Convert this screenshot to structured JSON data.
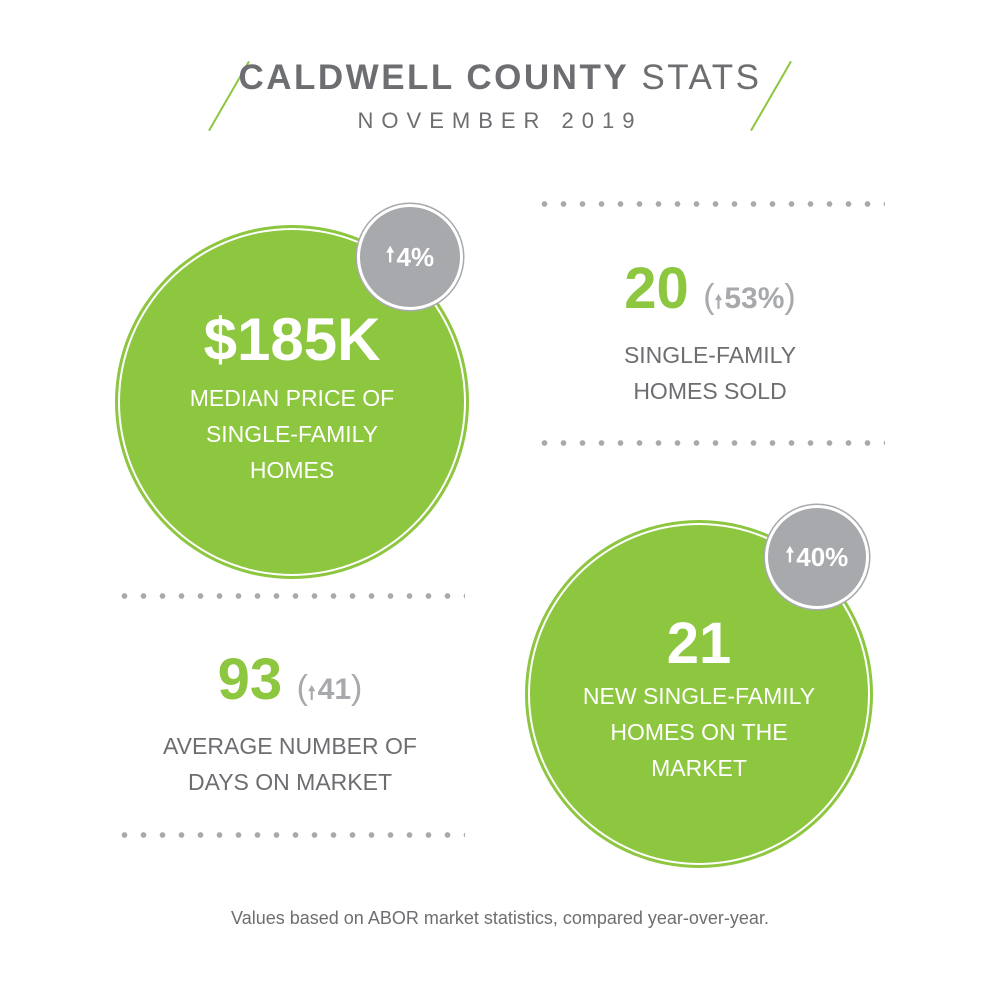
{
  "header": {
    "title_bold": "CALDWELL COUNTY",
    "title_light": "STATS",
    "subtitle": "NOVEMBER 2019"
  },
  "stats": {
    "median_price": {
      "value": "$185K",
      "label_lines": [
        "MEDIAN PRICE OF",
        "SINGLE-FAMILY",
        "HOMES"
      ],
      "change": "4%"
    },
    "homes_sold": {
      "value": "20",
      "change": "53%",
      "label_lines": [
        "SINGLE-FAMILY",
        "HOMES SOLD"
      ]
    },
    "days_on_market": {
      "value": "93",
      "change": "41",
      "label_lines": [
        "AVERAGE NUMBER OF",
        "DAYS ON MARKET"
      ]
    },
    "new_listings": {
      "value": "21",
      "label_lines": [
        "NEW SINGLE-FAMILY",
        "HOMES ON THE",
        "MARKET"
      ],
      "change": "40%"
    }
  },
  "footnote": "Values based on ABOR market statistics, compared year-over-year.",
  "icons": {
    "change": "up-arrow-icon"
  },
  "colors": {
    "accent_green": "#8dc63f",
    "badge_grey": "#a7a9ac",
    "text_grey": "#6d6e71"
  }
}
